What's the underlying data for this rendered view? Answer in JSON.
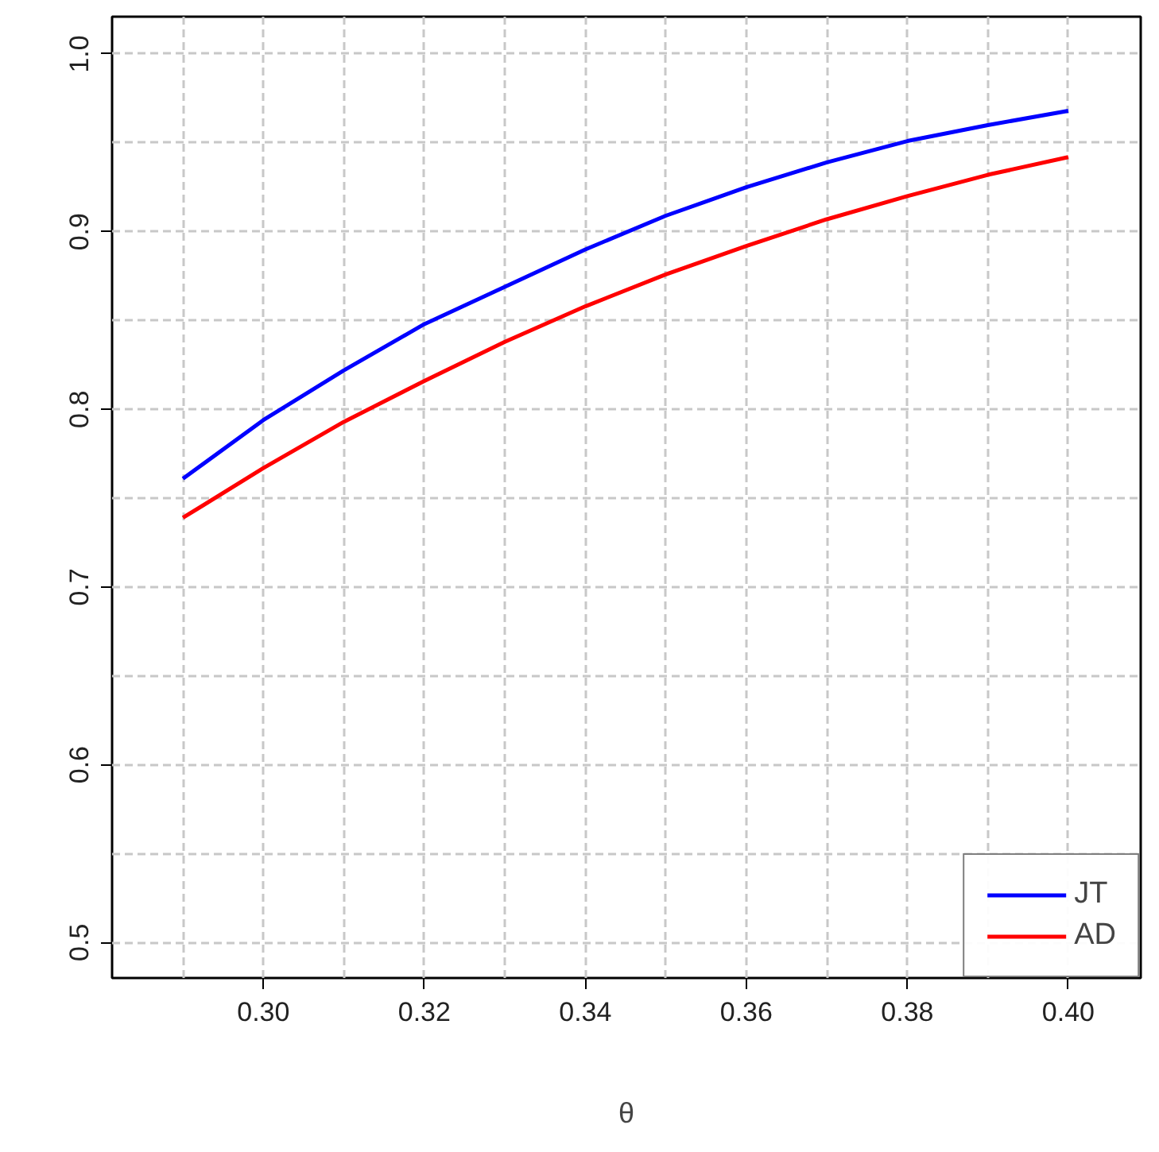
{
  "chart_data": {
    "type": "line",
    "xlabel": "θ",
    "x": [
      0.29,
      0.3,
      0.31,
      0.32,
      0.33,
      0.34,
      0.35,
      0.36,
      0.37,
      0.38,
      0.39,
      0.4
    ],
    "series": [
      {
        "name": "JT",
        "color": "#0000ff",
        "values": [
          0.761,
          0.794,
          0.822,
          0.848,
          0.869,
          0.89,
          0.909,
          0.925,
          0.939,
          0.951,
          0.96,
          0.968
        ]
      },
      {
        "name": "AD",
        "color": "#ff0000",
        "values": [
          0.739,
          0.767,
          0.793,
          0.816,
          0.838,
          0.858,
          0.876,
          0.892,
          0.907,
          0.92,
          0.932,
          0.942
        ]
      }
    ],
    "xlim": [
      0.2812,
      0.409
    ],
    "ylim": [
      0.48,
      1.021
    ],
    "xticks": [
      {
        "value": 0.3,
        "label": "0.30"
      },
      {
        "value": 0.32,
        "label": "0.32"
      },
      {
        "value": 0.34,
        "label": "0.34"
      },
      {
        "value": 0.36,
        "label": "0.36"
      },
      {
        "value": 0.38,
        "label": "0.38"
      },
      {
        "value": 0.4,
        "label": "0.40"
      }
    ],
    "yticks": [
      0.5,
      0.6,
      0.7,
      0.8,
      0.9,
      {
        "value": 1.0,
        "label": "1.0"
      }
    ],
    "grid": true,
    "legend": "bottom right",
    "line_style": "solid",
    "marker": "none"
  }
}
